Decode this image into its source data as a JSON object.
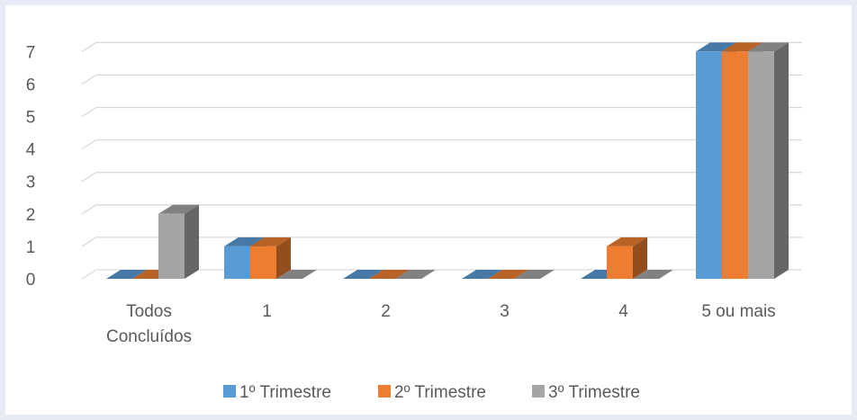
{
  "chart_data": {
    "type": "bar",
    "title": "",
    "xlabel": "",
    "ylabel": "",
    "ylim": [
      0,
      7
    ],
    "yticks": [
      0,
      1,
      2,
      3,
      4,
      5,
      6,
      7
    ],
    "grid": true,
    "three_d": true,
    "legend_position": "bottom",
    "categories": [
      {
        "lines": [
          "Todos",
          "Concluídos"
        ]
      },
      {
        "lines": [
          "1"
        ]
      },
      {
        "lines": [
          "2"
        ]
      },
      {
        "lines": [
          "3"
        ]
      },
      {
        "lines": [
          "4"
        ]
      },
      {
        "lines": [
          "5 ou mais"
        ]
      }
    ],
    "series": [
      {
        "name": "1º Trimestre",
        "color": "#5b9bd5",
        "values": [
          0,
          1,
          0,
          0,
          0,
          7
        ]
      },
      {
        "name": "2º Trimestre",
        "color": "#ed7d31",
        "values": [
          0,
          1,
          0,
          0,
          1,
          7
        ]
      },
      {
        "name": "3º Trimestre",
        "color": "#a5a5a5",
        "values": [
          2,
          0,
          0,
          0,
          0,
          7
        ]
      }
    ]
  }
}
